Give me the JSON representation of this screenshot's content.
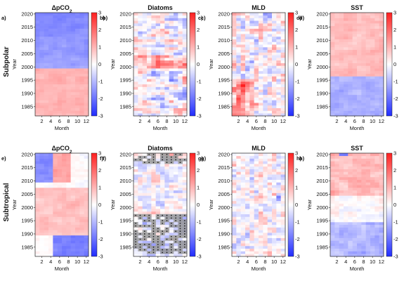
{
  "row_labels": [
    "Subpolar",
    "Subtropical"
  ],
  "colors": {
    "low": "#1f2bff",
    "mid": "#ffffff",
    "high": "#ff1f1f",
    "stipple": "#9a9a9a"
  },
  "chart_data": [
    {
      "type": "heatmap",
      "panel": "a)",
      "row": "Subpolar",
      "title": "ΔpCO",
      "title_sub": "2",
      "xlabel": "Month",
      "ylabel": "Year",
      "x": [
        1,
        2,
        3,
        4,
        5,
        6,
        7,
        8,
        9,
        10,
        11,
        12
      ],
      "xticks": [
        2,
        4,
        6,
        8,
        10,
        12
      ],
      "ylim": [
        1982,
        2020
      ],
      "yticks": [
        1985,
        1990,
        1995,
        2000,
        2005,
        2010,
        2015,
        2020
      ],
      "colorbar": {
        "label": "b)",
        "range": [
          -3,
          3
        ],
        "ticks": [
          3,
          2,
          1,
          0,
          -1,
          -2,
          -3
        ]
      },
      "pattern": "dpco2_subpolar",
      "stippled": false
    },
    {
      "type": "heatmap",
      "panel": "b)",
      "row": "Subpolar",
      "title": "Diatoms",
      "xlabel": "Month",
      "ylabel": "Year",
      "x": [
        1,
        2,
        3,
        4,
        5,
        6,
        7,
        8,
        9,
        10,
        11,
        12
      ],
      "xticks": [
        2,
        4,
        6,
        8,
        10,
        12
      ],
      "ylim": [
        1982,
        2020
      ],
      "yticks": [
        1985,
        1990,
        1995,
        2000,
        2005,
        2010,
        2015,
        2020
      ],
      "colorbar": {
        "label": "c)",
        "range": [
          -3,
          3
        ],
        "ticks": [
          3,
          2,
          1,
          0,
          -1,
          -2,
          -3
        ]
      },
      "pattern": "diat_subpolar",
      "stippled": false
    },
    {
      "type": "heatmap",
      "panel": "c)",
      "row": "Subpolar",
      "title": "MLD",
      "xlabel": "Month",
      "ylabel": "Year",
      "x": [
        1,
        2,
        3,
        4,
        5,
        6,
        7,
        8,
        9,
        10,
        11,
        12
      ],
      "xticks": [
        2,
        4,
        6,
        8,
        10,
        12
      ],
      "ylim": [
        1982,
        2020
      ],
      "yticks": [
        1985,
        1990,
        1995,
        2000,
        2005,
        2010,
        2015,
        2020
      ],
      "colorbar": {
        "label": "d)",
        "range": [
          -3,
          3
        ],
        "ticks": [
          3,
          2,
          1,
          0,
          -1,
          -2,
          -3
        ]
      },
      "pattern": "mld_subpolar",
      "stippled": false
    },
    {
      "type": "heatmap",
      "panel": "d)",
      "row": "Subpolar",
      "title": "SST",
      "xlabel": "Month",
      "ylabel": "Year",
      "x": [
        1,
        2,
        3,
        4,
        5,
        6,
        7,
        8,
        9,
        10,
        11,
        12
      ],
      "xticks": [
        2,
        4,
        6,
        8,
        10,
        12
      ],
      "ylim": [
        1982,
        2020
      ],
      "yticks": [
        1985,
        1990,
        1995,
        2000,
        2005,
        2010,
        2015,
        2020
      ],
      "colorbar": {
        "label": "",
        "range": [
          -3,
          3
        ],
        "ticks": [
          3,
          2,
          1,
          0,
          -1,
          -2,
          -3
        ]
      },
      "pattern": "sst_subpolar",
      "stippled": false
    },
    {
      "type": "heatmap",
      "panel": "e)",
      "row": "Subtropical",
      "title": "ΔpCO",
      "title_sub": "2",
      "xlabel": "Month",
      "ylabel": "Year",
      "x": [
        1,
        2,
        3,
        4,
        5,
        6,
        7,
        8,
        9,
        10,
        11,
        12
      ],
      "xticks": [
        2,
        4,
        6,
        8,
        10,
        12
      ],
      "ylim": [
        1982,
        2020
      ],
      "yticks": [
        1985,
        1990,
        1995,
        2000,
        2005,
        2010,
        2015,
        2020
      ],
      "colorbar": {
        "label": "f)",
        "range": [
          -3,
          3
        ],
        "ticks": [
          3,
          2,
          1,
          0,
          -1,
          -2,
          -3
        ]
      },
      "pattern": "dpco2_subtropical",
      "stippled": false
    },
    {
      "type": "heatmap",
      "panel": "f)",
      "row": "Subtropical",
      "title": "Diatoms",
      "xlabel": "Month",
      "ylabel": "Year",
      "x": [
        1,
        2,
        3,
        4,
        5,
        6,
        7,
        8,
        9,
        10,
        11,
        12
      ],
      "xticks": [
        2,
        4,
        6,
        8,
        10,
        12
      ],
      "ylim": [
        1982,
        2020
      ],
      "yticks": [
        1985,
        1990,
        1995,
        2000,
        2005,
        2010,
        2015,
        2020
      ],
      "colorbar": {
        "label": "g)",
        "range": [
          -3,
          3
        ],
        "ticks": [
          3,
          2,
          1,
          0,
          -1,
          -2,
          -3
        ]
      },
      "pattern": "diat_subtropical",
      "stippled": true
    },
    {
      "type": "heatmap",
      "panel": "g)",
      "row": "Subtropical",
      "title": "MLD",
      "xlabel": "Month",
      "ylabel": "Year",
      "x": [
        1,
        2,
        3,
        4,
        5,
        6,
        7,
        8,
        9,
        10,
        11,
        12
      ],
      "xticks": [
        2,
        4,
        6,
        8,
        10,
        12
      ],
      "ylim": [
        1982,
        2020
      ],
      "yticks": [
        1985,
        1990,
        1995,
        2000,
        2005,
        2010,
        2015,
        2020
      ],
      "colorbar": {
        "label": "h)",
        "range": [
          -3,
          3
        ],
        "ticks": [
          3,
          2,
          1,
          0,
          -1,
          -2,
          -3
        ]
      },
      "pattern": "mld_subtropical",
      "stippled": false
    },
    {
      "type": "heatmap",
      "panel": "h)",
      "row": "Subtropical",
      "title": "SST",
      "xlabel": "Month",
      "ylabel": "Year",
      "x": [
        1,
        2,
        3,
        4,
        5,
        6,
        7,
        8,
        9,
        10,
        11,
        12
      ],
      "xticks": [
        2,
        4,
        6,
        8,
        10,
        12
      ],
      "ylim": [
        1982,
        2020
      ],
      "yticks": [
        1985,
        1990,
        1995,
        2000,
        2005,
        2010,
        2015,
        2020
      ],
      "colorbar": {
        "label": "",
        "range": [
          -3,
          3
        ],
        "ticks": [
          3,
          2,
          1,
          0,
          -1,
          -2,
          -3
        ]
      },
      "pattern": "sst_subtropical",
      "stippled": false
    }
  ]
}
